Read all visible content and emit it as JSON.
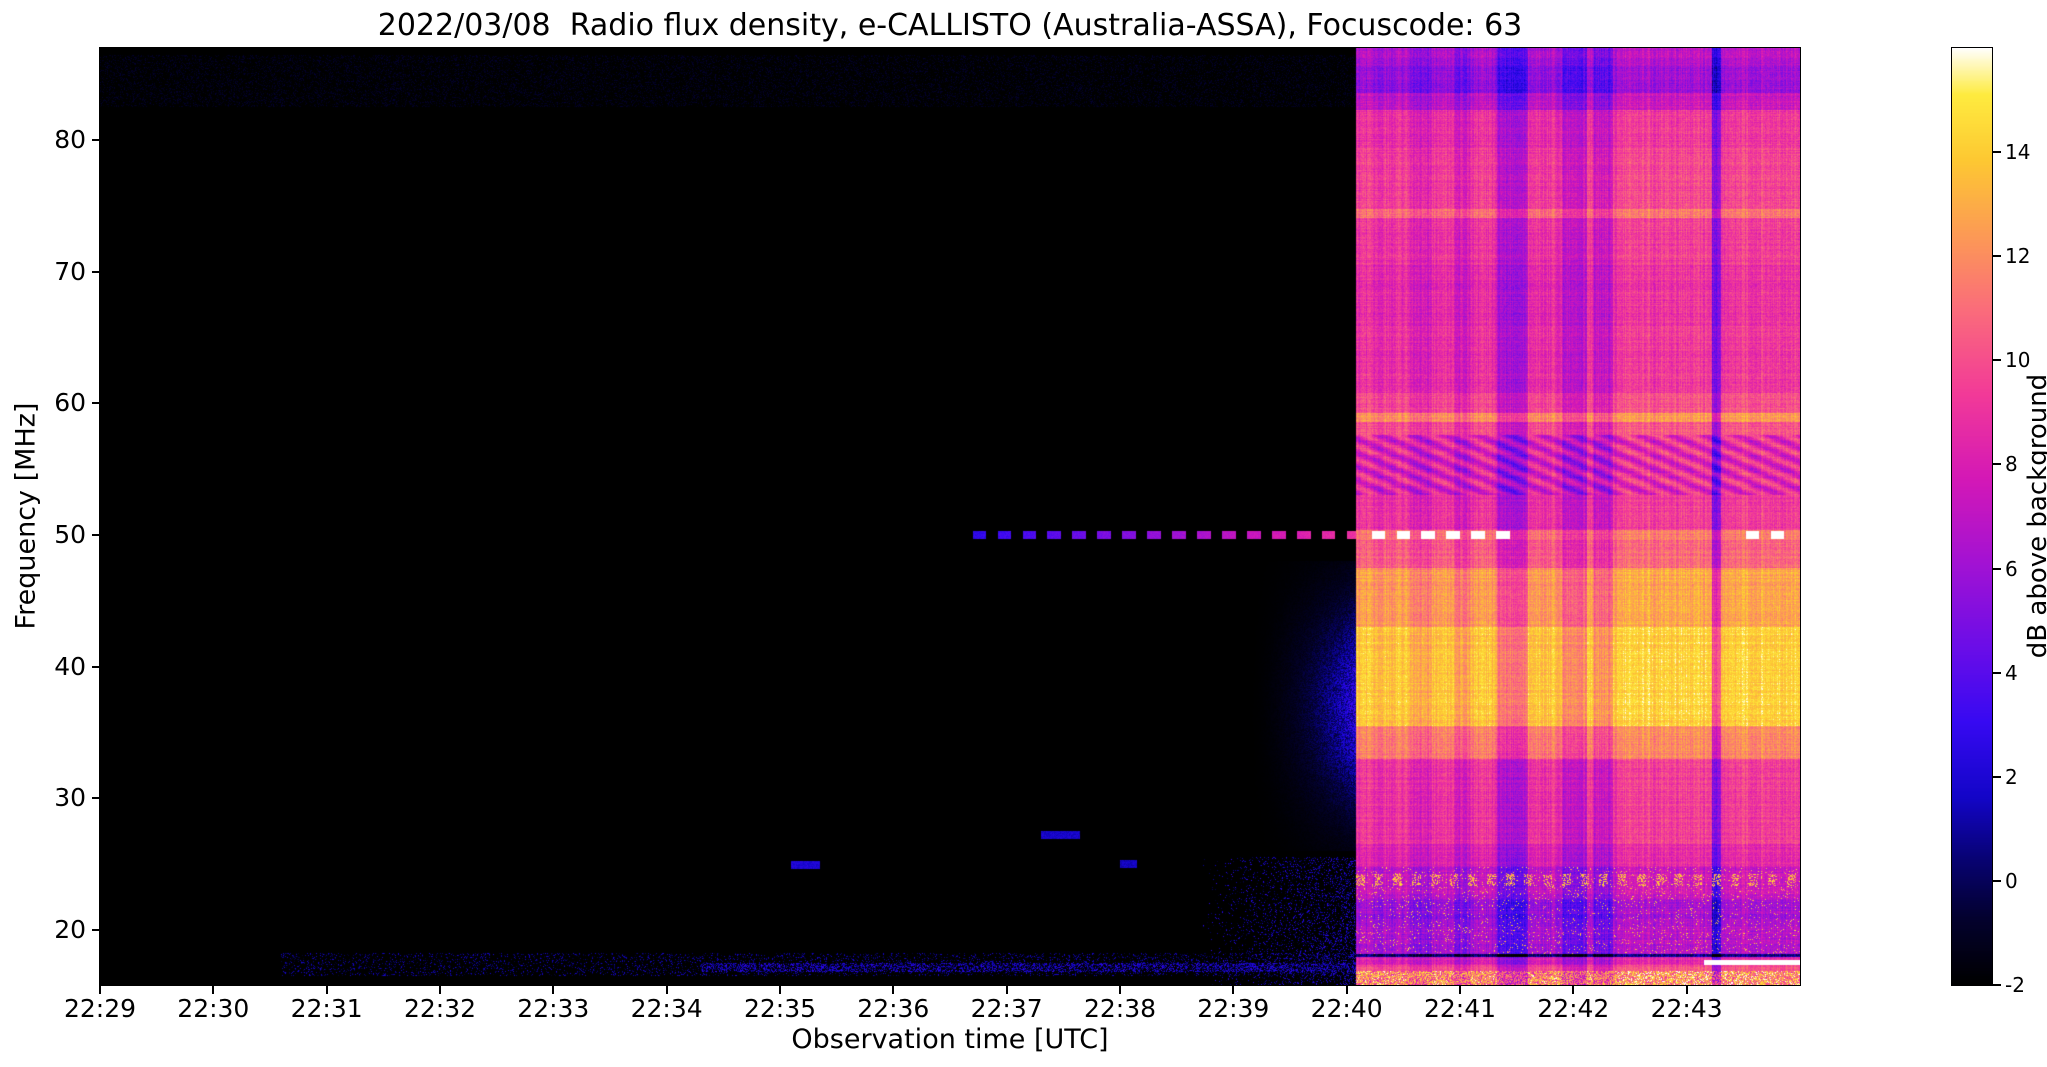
{
  "chart_data": {
    "type": "heatmap",
    "title": "2022/03/08  Radio flux density, e-CALLISTO (Australia-ASSA), Focuscode: 63",
    "xlabel": "Observation time [UTC]",
    "ylabel": "Frequency [MHz]",
    "colorbar_label": "dB above background",
    "time_span_min": 15,
    "x_ticks": [
      {
        "label": "22:29",
        "t": 0
      },
      {
        "label": "22:30",
        "t": 1
      },
      {
        "label": "22:31",
        "t": 2
      },
      {
        "label": "22:32",
        "t": 3
      },
      {
        "label": "22:33",
        "t": 4
      },
      {
        "label": "22:34",
        "t": 5
      },
      {
        "label": "22:35",
        "t": 6
      },
      {
        "label": "22:36",
        "t": 7
      },
      {
        "label": "22:37",
        "t": 8
      },
      {
        "label": "22:38",
        "t": 9
      },
      {
        "label": "22:39",
        "t": 10
      },
      {
        "label": "22:40",
        "t": 11
      },
      {
        "label": "22:41",
        "t": 12
      },
      {
        "label": "22:42",
        "t": 13
      },
      {
        "label": "22:43",
        "t": 14
      }
    ],
    "freq_range": [
      15.8,
      87.0
    ],
    "y_ticks": [
      20,
      30,
      40,
      50,
      60,
      70,
      80
    ],
    "value_range": [
      -2,
      16
    ],
    "colorbar_ticks": [
      -2,
      0,
      2,
      4,
      6,
      8,
      10,
      12,
      14
    ],
    "colormap": [
      {
        "t": 0.0,
        "c": "#000000"
      },
      {
        "t": 0.07,
        "c": "#03012e"
      },
      {
        "t": 0.13,
        "c": "#07026f"
      },
      {
        "t": 0.2,
        "c": "#1305c8"
      },
      {
        "t": 0.28,
        "c": "#3709f2"
      },
      {
        "t": 0.36,
        "c": "#6b0de8"
      },
      {
        "t": 0.45,
        "c": "#a312d3"
      },
      {
        "t": 0.54,
        "c": "#d418b6"
      },
      {
        "t": 0.63,
        "c": "#f23a98"
      },
      {
        "t": 0.72,
        "c": "#fa6c7b"
      },
      {
        "t": 0.8,
        "c": "#fc9a55"
      },
      {
        "t": 0.88,
        "c": "#fdc832"
      },
      {
        "t": 0.95,
        "c": "#feeb3f"
      },
      {
        "t": 1.0,
        "c": "#ffffff"
      }
    ],
    "burst_start_min": 11.08,
    "burst_bands": [
      {
        "f0": 15.8,
        "f1": 16.9,
        "db": 12.0,
        "noisy": true
      },
      {
        "f0": 16.9,
        "f1": 17.35,
        "db": 9.5
      },
      {
        "f0": 17.35,
        "f1": 17.9,
        "db": 8.0
      },
      {
        "f0": 17.9,
        "f1": 18.18,
        "db": 0.5
      },
      {
        "f0": 18.18,
        "f1": 20.3,
        "db": 6.4,
        "speckle": true
      },
      {
        "f0": 20.3,
        "f1": 22.3,
        "db": 5.8,
        "speckle": true
      },
      {
        "f0": 22.3,
        "f1": 24.8,
        "db": 7.0,
        "speckle": true
      },
      {
        "f0": 24.8,
        "f1": 26.5,
        "db": 8.2
      },
      {
        "f0": 26.5,
        "f1": 33.0,
        "db": 9.0
      },
      {
        "f0": 33.0,
        "f1": 35.5,
        "db": 11.5
      },
      {
        "f0": 35.5,
        "f1": 43.0,
        "db": 13.8
      },
      {
        "f0": 43.0,
        "f1": 47.5,
        "db": 12.4
      },
      {
        "f0": 47.5,
        "f1": 49.6,
        "db": 10.5
      },
      {
        "f0": 49.6,
        "f1": 50.4,
        "db": 11.0
      },
      {
        "f0": 50.4,
        "f1": 53.0,
        "db": 8.8
      },
      {
        "f0": 53.0,
        "f1": 57.6,
        "db": 8.2,
        "diag": true
      },
      {
        "f0": 57.6,
        "f1": 58.6,
        "db": 9.8
      },
      {
        "f0": 58.6,
        "f1": 59.3,
        "db": 12.2
      },
      {
        "f0": 59.3,
        "f1": 60.8,
        "db": 9.8
      },
      {
        "f0": 60.8,
        "f1": 66.0,
        "db": 8.8
      },
      {
        "f0": 66.0,
        "f1": 70.5,
        "db": 8.6
      },
      {
        "f0": 70.5,
        "f1": 74.1,
        "db": 9.0
      },
      {
        "f0": 74.1,
        "f1": 74.8,
        "db": 11.0
      },
      {
        "f0": 74.8,
        "f1": 79.5,
        "db": 9.3
      },
      {
        "f0": 79.5,
        "f1": 82.3,
        "db": 8.8
      },
      {
        "f0": 82.3,
        "f1": 83.6,
        "db": 7.0
      },
      {
        "f0": 83.6,
        "f1": 85.6,
        "db": 5.6
      },
      {
        "f0": 85.6,
        "f1": 87.0,
        "db": 6.4
      }
    ],
    "vertical_stripes": [
      {
        "t0": 11.55,
        "t1": 11.75,
        "delta_db": -0.8
      },
      {
        "t0": 11.95,
        "t1": 12.1,
        "delta_db": -1.2
      },
      {
        "t0": 12.33,
        "t1": 12.6,
        "delta_db": -2.6
      },
      {
        "t0": 12.9,
        "t1": 13.12,
        "delta_db": -2.0
      },
      {
        "t0": 13.17,
        "t1": 13.35,
        "delta_db": -1.6
      },
      {
        "t0": 14.22,
        "t1": 14.3,
        "delta_db": -4.5
      },
      {
        "t0": 13.4,
        "t1": 15.0,
        "delta_db": 0.5
      }
    ],
    "line_50mhz": {
      "freq": 50,
      "dash_period_min": 0.22,
      "dash_duty": 0.55,
      "pre_segment": {
        "t0": 7.6,
        "db_start": 2.5,
        "db_end": 9.0
      },
      "white_segments": [
        [
          11.12,
          12.45
        ],
        [
          14.5,
          14.9
        ]
      ],
      "white_db": 16
    },
    "white_line_17mhz": {
      "f0": 17.35,
      "f1": 17.68,
      "t0": 14.15,
      "db": 16
    },
    "pre_burst": {
      "glow": {
        "f_center": 37,
        "f_sigma": 5.5,
        "t0": 10.1,
        "amp_db": 4.5
      },
      "bottom_noise_band": {
        "f0": 16.8,
        "f1": 17.5,
        "t0": 5.3,
        "db": 3.5
      },
      "bottom_speckle": {
        "f0": 16.5,
        "f1": 18.2,
        "t0": 1.6,
        "prob": 0.18,
        "db": 3.0
      },
      "spread_noise": {
        "f0": 15.8,
        "f1": 25.5,
        "t0": 9.7,
        "db": 4.0
      },
      "pre_dashes": [
        {
          "t0": 6.1,
          "t1": 6.35,
          "f": 24.9,
          "db": 1.5
        },
        {
          "t0": 8.3,
          "t1": 8.65,
          "f": 27.2,
          "db": 1.2
        },
        {
          "t0": 9.0,
          "t1": 9.15,
          "f": 25.0,
          "db": 1.0
        }
      ]
    }
  }
}
